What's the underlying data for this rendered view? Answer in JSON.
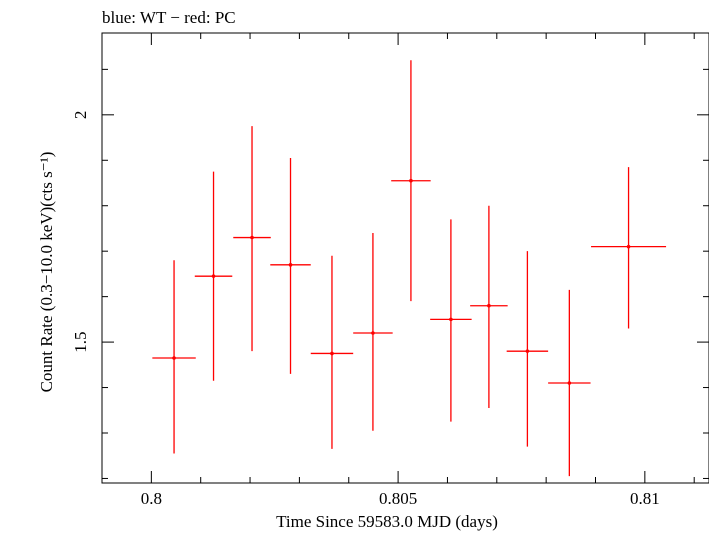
{
  "chart_data": {
    "type": "scatter",
    "title": "blue: WT − red: PC",
    "xlabel": "Time Since 59583.0 MJD (days)",
    "ylabel": "Count Rate (0.3−10.0 keV)(cts s⁻¹)",
    "xlim": [
      0.799,
      0.8113
    ],
    "ylim": [
      1.19,
      2.18
    ],
    "xticks": [
      {
        "value": 0.8,
        "label": "0.8"
      },
      {
        "value": 0.805,
        "label": "0.805"
      },
      {
        "value": 0.81,
        "label": "0.81"
      }
    ],
    "yticks": [
      {
        "value": 1.5,
        "label": "1.5"
      },
      {
        "value": 2.0,
        "label": "2"
      }
    ],
    "grid": false,
    "series": [
      {
        "name": "PC",
        "color": "#ff0000",
        "points": [
          {
            "x": 0.80046,
            "y": 1.465,
            "xerr": 0.00044,
            "ylo": 1.255,
            "yhi": 1.68
          },
          {
            "x": 0.80126,
            "y": 1.645,
            "xerr": 0.00038,
            "ylo": 1.415,
            "yhi": 1.875
          },
          {
            "x": 0.80204,
            "y": 1.73,
            "xerr": 0.00038,
            "ylo": 1.48,
            "yhi": 1.975
          },
          {
            "x": 0.80282,
            "y": 1.67,
            "xerr": 0.00041,
            "ylo": 1.43,
            "yhi": 1.905
          },
          {
            "x": 0.80366,
            "y": 1.475,
            "xerr": 0.00043,
            "ylo": 1.265,
            "yhi": 1.69
          },
          {
            "x": 0.80449,
            "y": 1.52,
            "xerr": 0.0004,
            "ylo": 1.305,
            "yhi": 1.74
          },
          {
            "x": 0.80526,
            "y": 1.855,
            "xerr": 0.0004,
            "ylo": 1.59,
            "yhi": 2.12
          },
          {
            "x": 0.80607,
            "y": 1.55,
            "xerr": 0.00042,
            "ylo": 1.325,
            "yhi": 1.77
          },
          {
            "x": 0.80684,
            "y": 1.58,
            "xerr": 0.00038,
            "ylo": 1.355,
            "yhi": 1.8
          },
          {
            "x": 0.80762,
            "y": 1.48,
            "xerr": 0.00042,
            "ylo": 1.27,
            "yhi": 1.7
          },
          {
            "x": 0.80847,
            "y": 1.41,
            "xerr": 0.00043,
            "ylo": 1.205,
            "yhi": 1.615
          },
          {
            "x": 0.80967,
            "y": 1.71,
            "xerr": 0.00076,
            "ylo": 1.53,
            "yhi": 1.885
          }
        ]
      }
    ]
  }
}
